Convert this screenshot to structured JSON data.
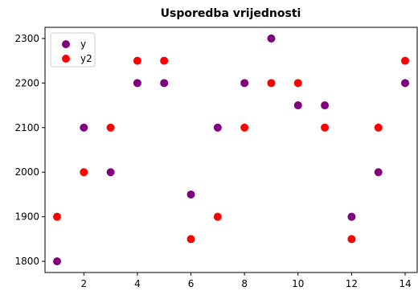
{
  "chart_data": {
    "type": "scatter",
    "title": "Usporedba vrijednosti",
    "xlabel": "",
    "ylabel": "",
    "xlim": [
      0.55,
      14.45
    ],
    "ylim": [
      1775,
      2325
    ],
    "xticks": [
      2,
      4,
      6,
      8,
      10,
      12,
      14
    ],
    "yticks": [
      1800,
      1900,
      2000,
      2100,
      2200,
      2300
    ],
    "grid": false,
    "legend_position": "top-left",
    "x": [
      1,
      2,
      3,
      4,
      5,
      6,
      7,
      8,
      9,
      10,
      11,
      12,
      13,
      14
    ],
    "series": [
      {
        "name": "y",
        "color": "#800080",
        "values": [
          1800,
          2100,
          2000,
          2200,
          2200,
          1950,
          2100,
          2200,
          2300,
          2150,
          2150,
          1900,
          2000,
          2200
        ]
      },
      {
        "name": "y2",
        "color": "#ff0000",
        "values": [
          1900,
          2000,
          2100,
          2250,
          2250,
          1850,
          1900,
          2100,
          2200,
          2200,
          2100,
          1850,
          2100,
          2250
        ]
      }
    ]
  }
}
